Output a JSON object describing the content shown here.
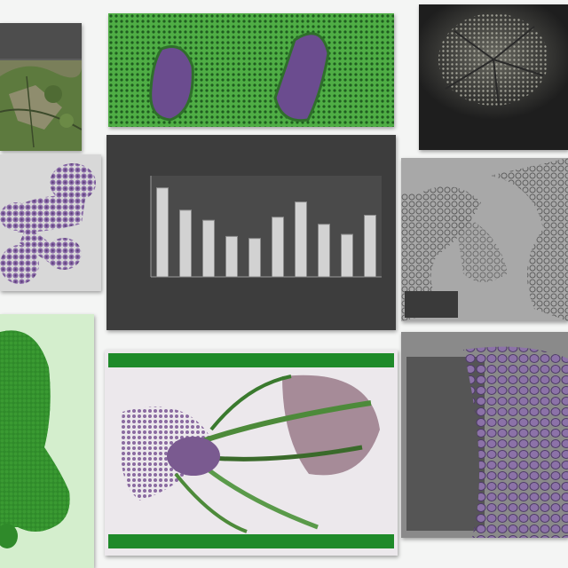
{
  "colors": {
    "page_bg": "#f4f5f4",
    "accent_green": "#2e9a34",
    "accent_purple": "#7a5a9a",
    "dark_panel": "#3a3a3a"
  },
  "panels": {
    "top_left_map": {
      "caption_lines": []
    },
    "top_center_tissue": {
      "caption": ""
    },
    "top_right_micrograph": {
      "caption_lines": []
    },
    "mid_left_molecule": {
      "caption": ""
    },
    "center_chart": {
      "caption": ""
    },
    "mid_right_network": {
      "caption_lines": []
    },
    "bottom_left_organ": {
      "caption": ""
    },
    "bottom_center_fibers": {
      "caption_top": "",
      "caption_bottom": ""
    },
    "bottom_right_cells": {
      "caption_lines": []
    },
    "corner_label": {
      "text": ""
    }
  },
  "chart_data": {
    "type": "bar",
    "categories": [
      "",
      "",
      "",
      "",
      "",
      "",
      "",
      "",
      "",
      ""
    ],
    "values": [
      88,
      66,
      56,
      40,
      38,
      59,
      74,
      52,
      42,
      61
    ],
    "ylim": [
      0,
      100
    ],
    "title": "",
    "xlabel": "",
    "ylabel": "",
    "grid": false
  }
}
